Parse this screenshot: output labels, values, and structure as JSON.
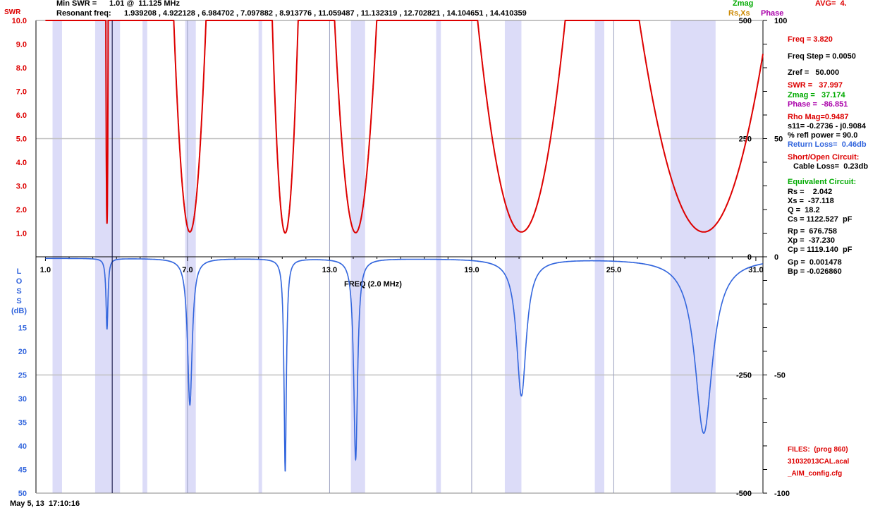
{
  "header": {
    "min_swr_label": "Min SWR =",
    "min_swr_value": "1.01 @  11.125 MHz",
    "resonant_label": "Resonant freq:",
    "resonant_values": "1.939208 , 4.922128 , 6.984702 , 7.097882 , 8.913776 , 11.059487 , 11.132319 , 12.702821 , 14.104651 , 14.410359",
    "swr_tag": "SWR",
    "zmag_tag": "Zmag",
    "rsxs_tag": "Rs,Xs",
    "phase_tag": "Phase",
    "avg_label": "AVG=  4."
  },
  "panel": {
    "freq": "Freq = 3.820",
    "freq_step": "Freq Step = 0.0050",
    "zref": "Zref =   50.000",
    "swr": "SWR =   37.997",
    "zmag": "Zmag =   37.174",
    "phase": "Phase =  -86.851",
    "rho": "Rho Mag=0.9487",
    "s11": "s11= -0.2736 - j0.9084",
    "refl": "% refl power = 90.0",
    "return_loss": "Return Loss=  0.46db",
    "short_open": "Short/Open Circuit:",
    "cable_loss": "Cable Loss=  0.23db",
    "equiv": "Equivalent Circuit:",
    "rs": "Rs =    2.042",
    "xs": "Xs =  -37.118",
    "q": "Q =  18.2",
    "cs": "Cs = 1122.527  pF",
    "rp": "Rp =  676.758",
    "xp": "Xp =  -37.230",
    "cp": "Cp = 1119.140  pF",
    "gp": "Gp =  0.001478",
    "bp": "Bp = -0.026860",
    "files_label": "FILES:  (prog 860)",
    "file1": "31032013CAL.acal",
    "file2": "_AIM_config.cfg"
  },
  "footer": {
    "timestamp": "May 5, 13  17:10:16"
  },
  "colors": {
    "swr": "#dd0000",
    "loss": "#3366dd",
    "zmag": "#00aa00",
    "rsxs": "#cc8800",
    "phase": "#aa00aa",
    "band": "#dcdcf8",
    "grid": "#c0c0c0"
  },
  "chart_data": {
    "type": "line",
    "xlabel": "FREQ (2.0 MHz)",
    "x_range": [
      0.6,
      31.3
    ],
    "x_ticks": [
      "1.0",
      "7.0",
      "13.0",
      "19.0",
      "25.0",
      "31.0"
    ],
    "x_tick_values": [
      1,
      7,
      13,
      19,
      25,
      31
    ],
    "swr_axis": {
      "label": "SWR",
      "range": [
        0,
        10
      ],
      "ticks": [
        "10.0",
        "9.0",
        "8.0",
        "7.0",
        "6.0",
        "5.0",
        "4.0",
        "3.0",
        "2.0",
        "1.0"
      ],
      "tick_values": [
        10,
        9,
        8,
        7,
        6,
        5,
        4,
        3,
        2,
        1
      ]
    },
    "loss_axis": {
      "label": "LOSS (dB)",
      "range": [
        0,
        50
      ],
      "ticks": [
        "15",
        "20",
        "25",
        "30",
        "35",
        "40",
        "45",
        "50"
      ],
      "tick_values": [
        15,
        20,
        25,
        30,
        35,
        40,
        45,
        50
      ]
    },
    "zmag_axis": {
      "range": [
        -500,
        500
      ],
      "ticks": [
        "500",
        "250",
        "0",
        "-250",
        "-500"
      ],
      "tick_values": [
        500,
        250,
        0,
        -250,
        -500
      ]
    },
    "phase_axis": {
      "range": [
        -100,
        100
      ],
      "ticks": [
        "100",
        "50",
        "0",
        "-50",
        "-100"
      ],
      "tick_values": [
        100,
        50,
        0,
        -50,
        -100
      ]
    },
    "bands": [
      [
        1.3,
        1.7
      ],
      [
        3.1,
        4.15
      ],
      [
        5.1,
        5.3
      ],
      [
        6.9,
        7.35
      ],
      [
        10.0,
        10.15
      ],
      [
        13.9,
        14.5
      ],
      [
        17.5,
        17.7
      ],
      [
        20.4,
        21.1
      ],
      [
        24.2,
        24.6
      ],
      [
        27.4,
        29.3
      ]
    ],
    "cursor_x": 3.82,
    "swr_dips": [
      {
        "f": 3.6,
        "min": 1.4,
        "w": 0.06
      },
      {
        "f": 7.1,
        "min": 1.05,
        "w": 0.7
      },
      {
        "f": 11.125,
        "min": 1.01,
        "w": 0.55
      },
      {
        "f": 14.1,
        "min": 1.02,
        "w": 0.9
      },
      {
        "f": 21.1,
        "min": 1.05,
        "w": 1.9
      },
      {
        "f": 28.8,
        "min": 1.05,
        "w": 2.8
      }
    ],
    "loss_dips": [
      {
        "f": 3.6,
        "depth": 15.0,
        "w": 0.05
      },
      {
        "f": 7.1,
        "depth": 31.0,
        "w": 0.12
      },
      {
        "f": 11.125,
        "depth": 45.0,
        "w": 0.06
      },
      {
        "f": 14.1,
        "depth": 42.5,
        "w": 0.1
      },
      {
        "f": 21.1,
        "depth": 29.0,
        "w": 0.25
      },
      {
        "f": 28.8,
        "depth": 37.0,
        "w": 0.45
      }
    ]
  }
}
